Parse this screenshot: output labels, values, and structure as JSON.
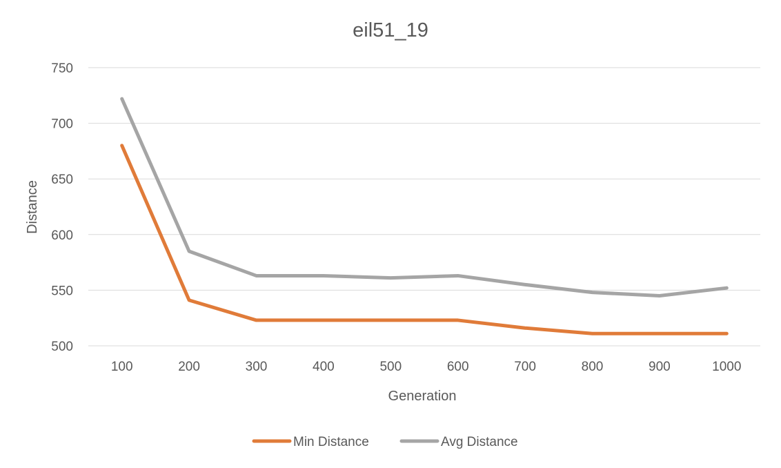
{
  "chart_data": {
    "type": "line",
    "title": "eil51_19",
    "xlabel": "Generation",
    "ylabel": "Distance",
    "categories": [
      "100",
      "200",
      "300",
      "400",
      "500",
      "600",
      "700",
      "800",
      "900",
      "1000"
    ],
    "ylim": [
      500,
      750
    ],
    "yticks": [
      500,
      550,
      600,
      650,
      700,
      750
    ],
    "grid": true,
    "legend_position": "bottom",
    "series": [
      {
        "name": "Min Distance",
        "color": "#e07b39",
        "values": [
          680,
          541,
          523,
          523,
          523,
          523,
          516,
          511,
          511,
          511
        ]
      },
      {
        "name": "Avg Distance",
        "color": "#a5a5a5",
        "values": [
          722,
          585,
          563,
          563,
          561,
          563,
          555,
          548,
          545,
          552
        ]
      }
    ]
  }
}
